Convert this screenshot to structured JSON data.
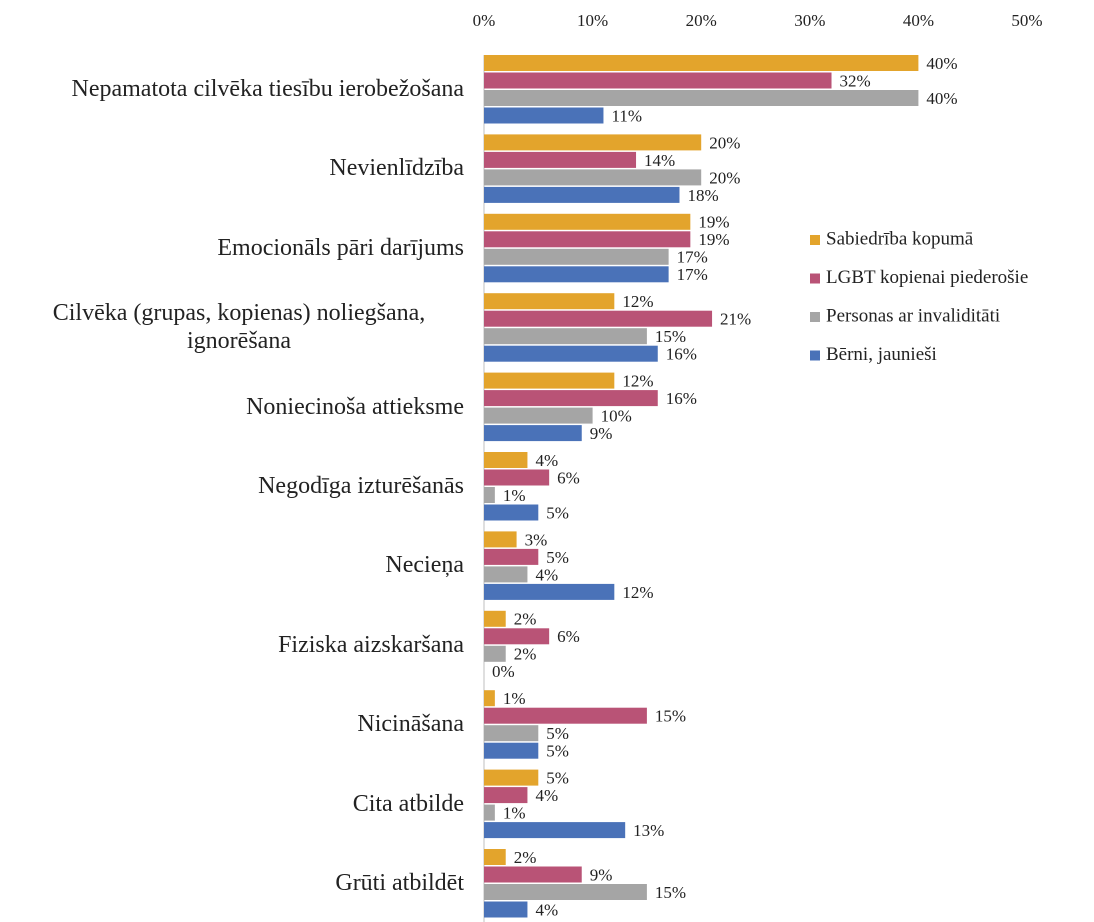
{
  "chart_data": {
    "type": "hbar",
    "categories": [
      "Nepamatota cilvēka tiesību ierobežošana",
      "Nevienlīdzība",
      "Emocionāls pāri darījums",
      "Cilvēka (grupas, kopienas) noliegšana, ignorēšana",
      "Noniecinoša attieksme",
      "Negodīga izturēšanās",
      "Necieņa",
      "Fiziska aizskaršana",
      "Nicināšana",
      "Cita atbilde",
      "Grūti atbildēt"
    ],
    "series": [
      {
        "name": "Sabiedrība kopumā",
        "color": "#e3a42c",
        "values": [
          40,
          20,
          19,
          12,
          12,
          4,
          3,
          2,
          1,
          5,
          2
        ],
        "value_labels": [
          "40%",
          "20%",
          "19%",
          "12%",
          "12%",
          "4%",
          "3%",
          "2%",
          "1%",
          "5%",
          "2%"
        ]
      },
      {
        "name": "LGBT kopienai piederošie",
        "color": "#b95376",
        "values": [
          32,
          14,
          19,
          21,
          16,
          6,
          5,
          6,
          15,
          4,
          9
        ],
        "value_labels": [
          "32%",
          "14%",
          "19%",
          "21%",
          "16%",
          "6%",
          "5%",
          "6%",
          "15%",
          "4%",
          "9%"
        ]
      },
      {
        "name": "Personas ar invaliditāti",
        "color": "#a5a5a5",
        "values": [
          40,
          20,
          17,
          15,
          10,
          1,
          4,
          2,
          5,
          1,
          15
        ],
        "value_labels": [
          "40%",
          "20%",
          "17%",
          "15%",
          "10%",
          "1%",
          "4%",
          "2%",
          "5%",
          "1%",
          "15%"
        ]
      },
      {
        "name": "Bērni, jaunieši",
        "color": "#4a72b8",
        "values": [
          11,
          18,
          17,
          16,
          9,
          5,
          12,
          0,
          5,
          13,
          4
        ],
        "value_labels": [
          "11%",
          "18%",
          "17%",
          "16%",
          "9%",
          "5%",
          "12%",
          "0%",
          "5%",
          "13%",
          "4%"
        ]
      }
    ],
    "xlim": [
      0,
      50
    ],
    "xticks": [
      {
        "value": 0,
        "label": "0%"
      },
      {
        "value": 10,
        "label": "10%"
      },
      {
        "value": 20,
        "label": "20%"
      },
      {
        "value": 30,
        "label": "30%"
      },
      {
        "value": 40,
        "label": "40%"
      },
      {
        "value": 50,
        "label": "50%"
      }
    ],
    "grid": false,
    "legend": "right"
  }
}
